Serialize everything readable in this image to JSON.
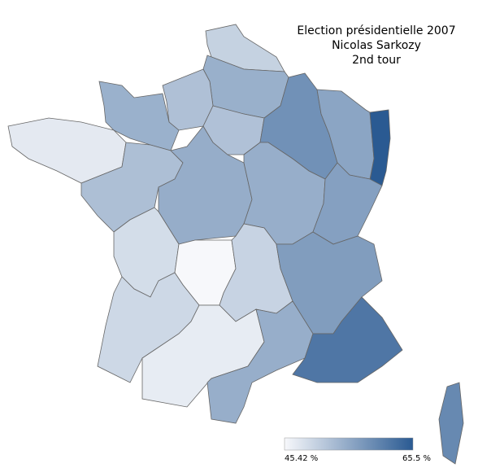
{
  "chart_data": {
    "type": "map",
    "title": [
      "Election présidentielle 2007",
      "Nicolas Sarkozy",
      "2nd tour"
    ],
    "values": [
      50.3,
      54.6,
      52.5,
      54.5,
      47.3,
      52.7,
      54.9,
      52.4,
      58.5,
      56.0,
      65.5,
      54.8,
      56.6,
      48.9,
      45.42,
      50.1,
      57.0,
      49.5,
      47.0,
      54.8,
      61.9,
      59.5
    ],
    "colorscale": [
      "#f7f8fb",
      "#2a5a92"
    ],
    "range": [
      {
        "value": 45.42,
        "label": "45.42 %"
      },
      {
        "value": 65.5,
        "label": "65.5 %"
      }
    ]
  }
}
